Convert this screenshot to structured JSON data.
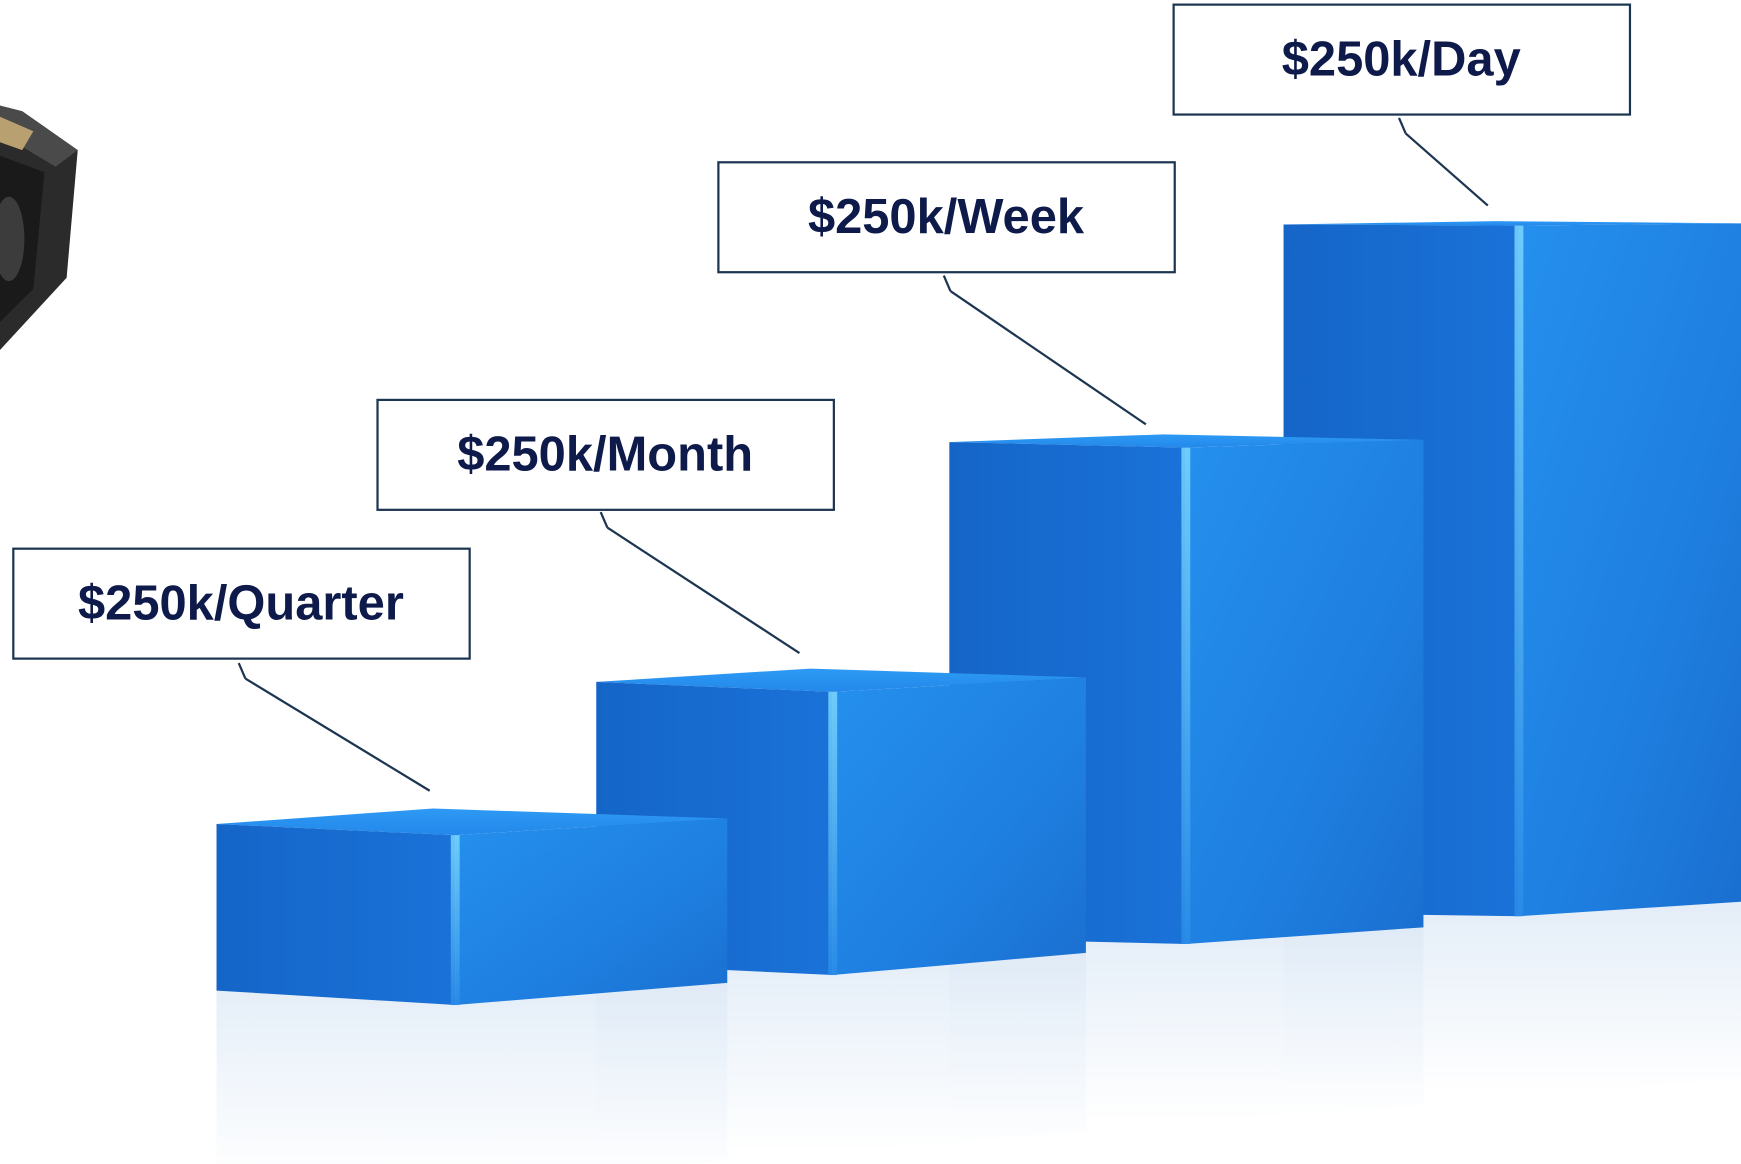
{
  "callouts": [
    {
      "text": "$250k/Quarter"
    },
    {
      "text": "$250k/Month"
    },
    {
      "text": "$250k/Week"
    },
    {
      "text": "$250k/Day"
    }
  ]
}
